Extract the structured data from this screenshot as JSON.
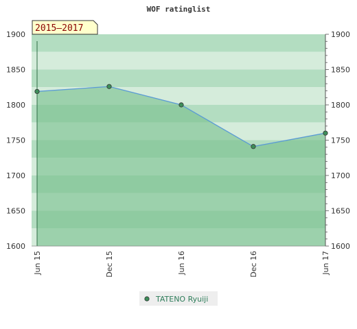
{
  "chart_data": {
    "type": "area",
    "title": "WOF ratinglist",
    "period_label": "2015–2017",
    "xlabel": "",
    "ylabel": "",
    "categories": [
      "Jun 15",
      "Dec 15",
      "Jun 16",
      "Dec 16",
      "Jun 17"
    ],
    "series": [
      {
        "name": "TATENO Ryuiji",
        "values": [
          1819,
          1826,
          1800,
          1741,
          1760
        ]
      }
    ],
    "ylim": [
      1600,
      1900
    ],
    "yticks": [
      "1600",
      "1650",
      "1700",
      "1750",
      "1800",
      "1850",
      "1900"
    ],
    "y_axis_both_sides": true,
    "grid": false,
    "legend_position": "bottom-center",
    "colors": {
      "line": "#5b9bd5",
      "area": "#77c08c",
      "marker": "#3e8e5a",
      "band_dark": "#b3ddc1",
      "band_light": "#d5ecdb",
      "legend_text": "#2e7d5a",
      "period_text": "#8b0000",
      "period_bg": "#ffffcc"
    }
  }
}
